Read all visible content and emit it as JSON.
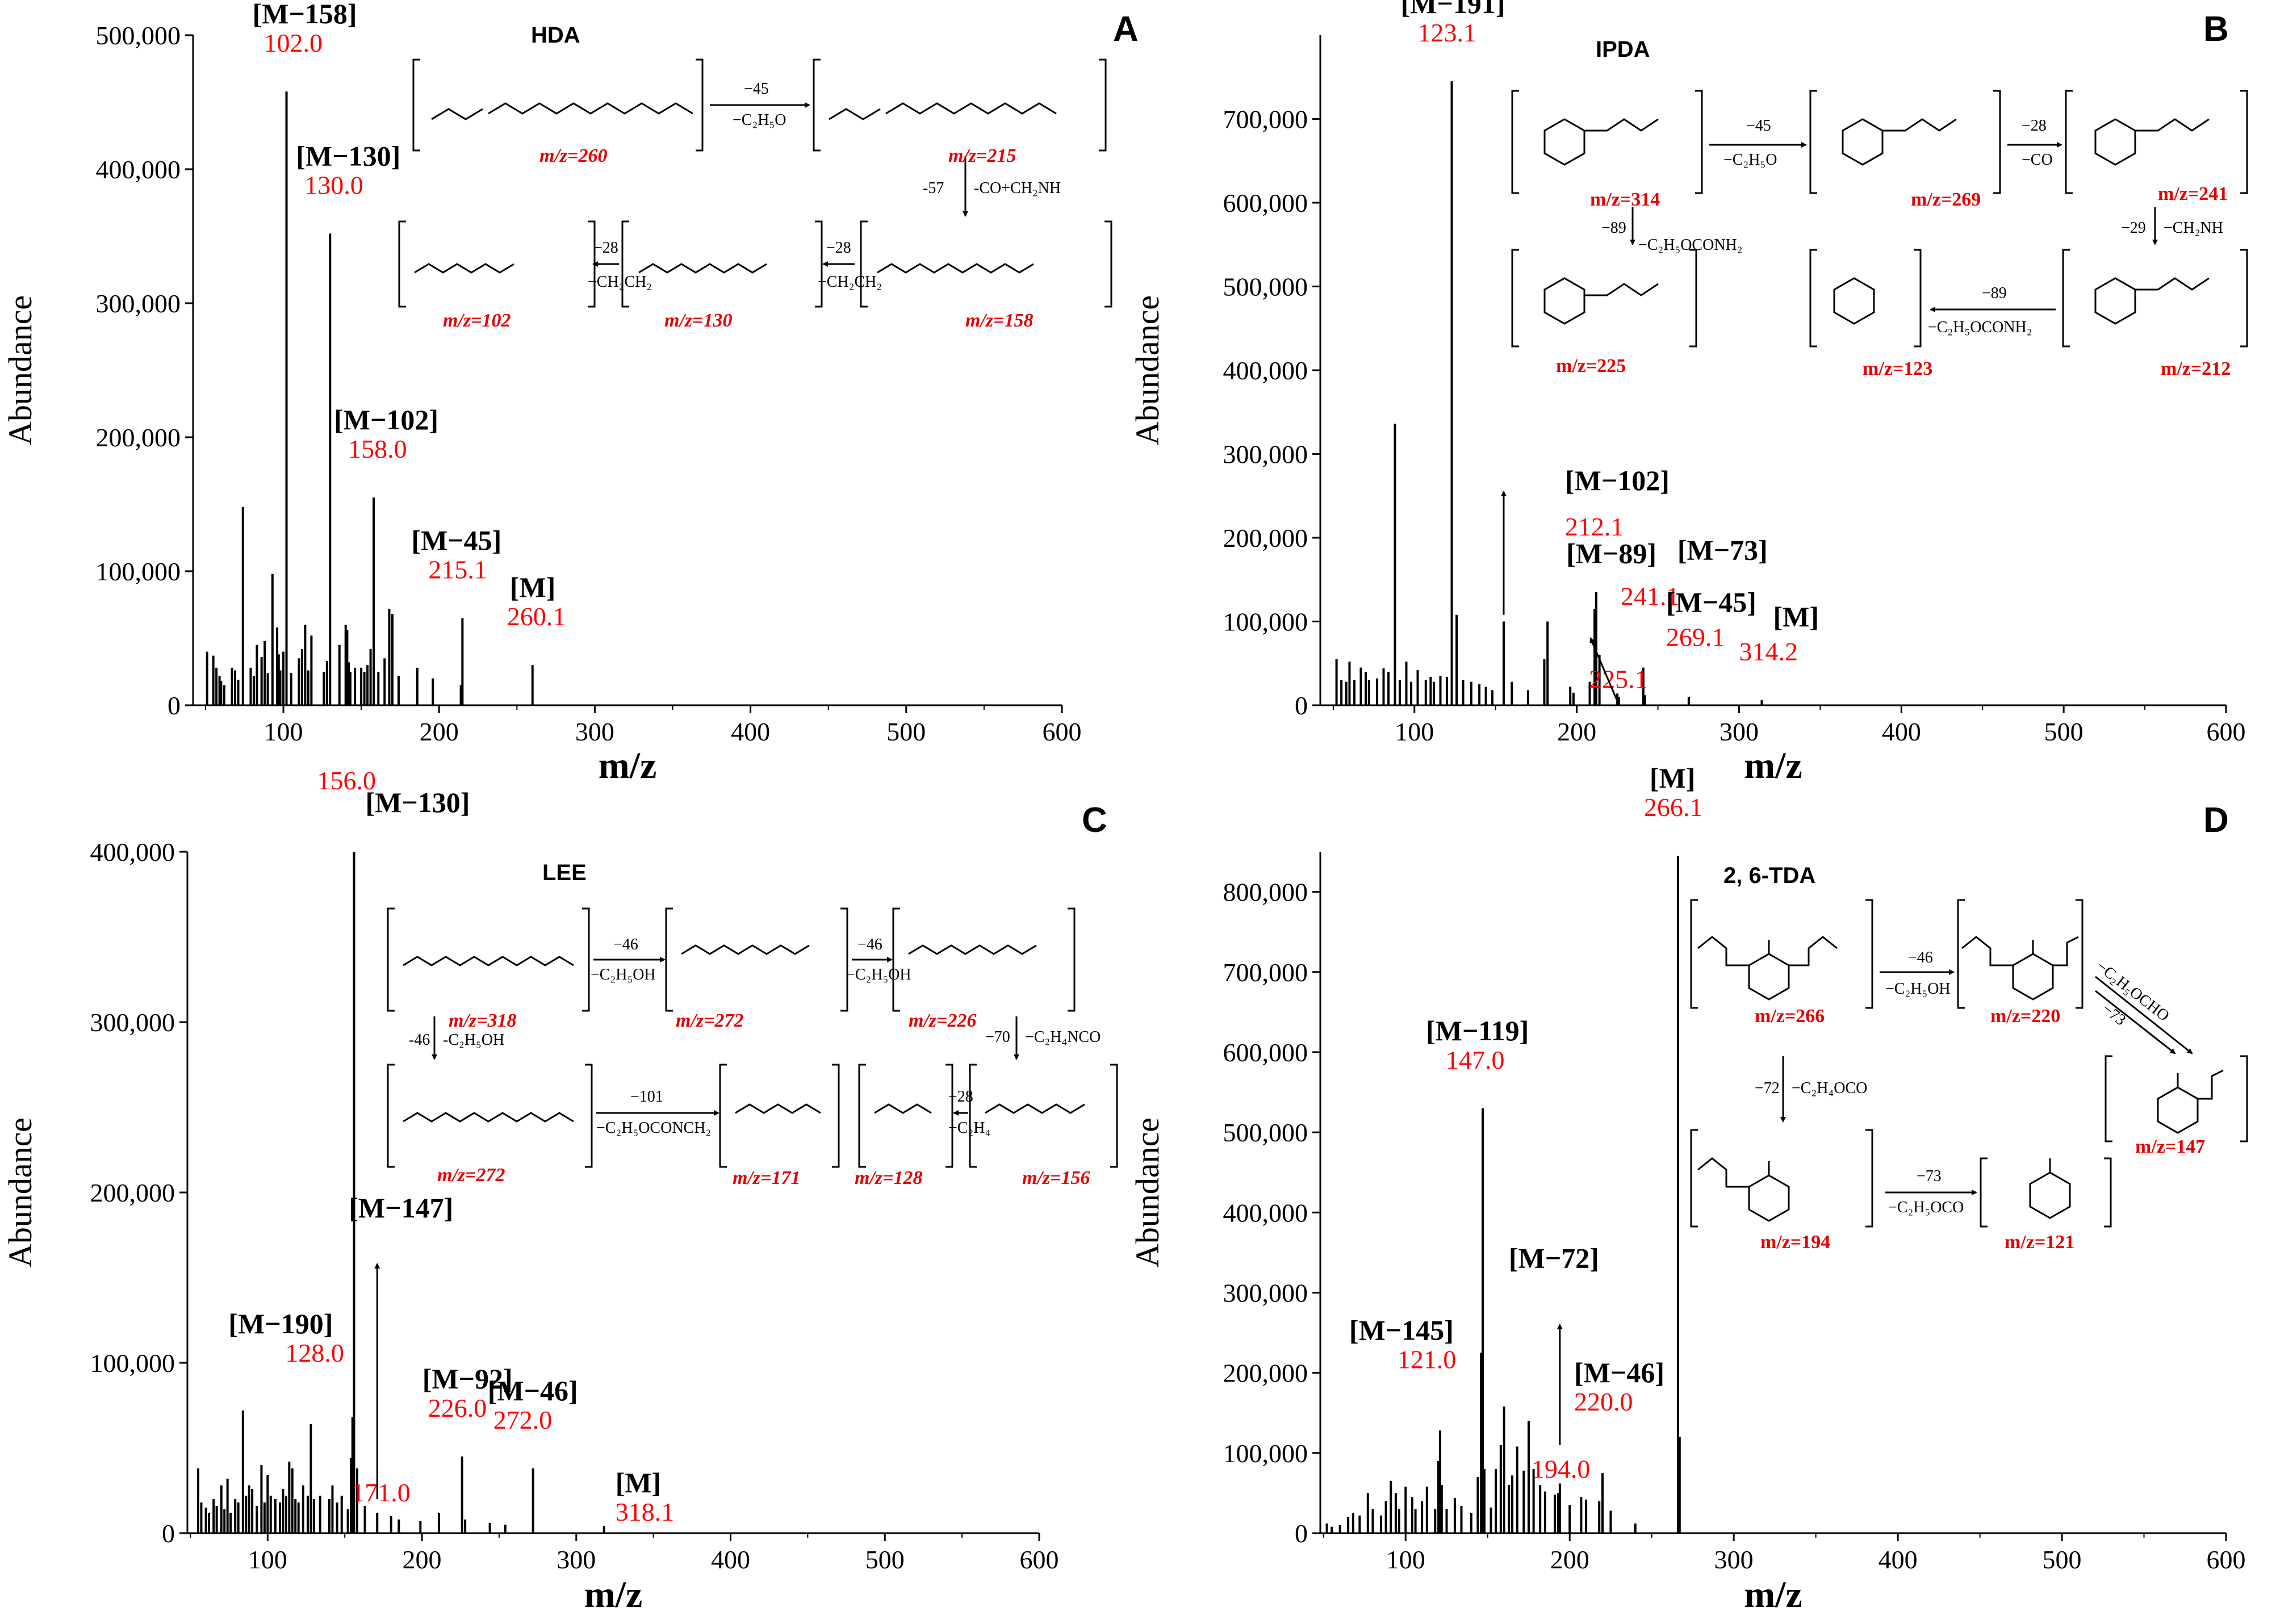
{
  "figure": {
    "description": "Mass spectra of four carbamates",
    "axis_x_label": "m/z",
    "axis_y_label": "Abundance"
  },
  "colors": {
    "axis": "#000000",
    "peaks": "#000000",
    "mass_label": "#ff0000",
    "fragment_label": "#000000",
    "scheme_red": "#e60000"
  },
  "chart_data": [
    {
      "type": "bar",
      "panel": "A",
      "compound": "HDA",
      "xlabel": "m/z",
      "ylabel": "Abundance",
      "xlim": [
        42,
        600
      ],
      "ylim": [
        0,
        500000
      ],
      "xticks": [
        100,
        200,
        300,
        400,
        500,
        600
      ],
      "yticks": [
        0,
        100000,
        200000,
        300000,
        400000,
        500000
      ],
      "ytick_labels": [
        "0",
        "100,000",
        "200,000",
        "300,000",
        "400,000",
        "500,000"
      ],
      "peaks": {
        "x": [
          51,
          55,
          57,
          59,
          60,
          62,
          67,
          69,
          71,
          74,
          79,
          81,
          83,
          86,
          88,
          90,
          93,
          96,
          97,
          98,
          100,
          102,
          105,
          110,
          112,
          114,
          116,
          118,
          126,
          128,
          130,
          136,
          140,
          141,
          142,
          143,
          146,
          150,
          152,
          154,
          156,
          158,
          161,
          165,
          168,
          170,
          174,
          186,
          196,
          214,
          215,
          260
        ],
        "y": [
          40000,
          37000,
          28000,
          22000,
          18000,
          15000,
          28000,
          26000,
          19000,
          148000,
          28000,
          22000,
          45000,
          36000,
          48000,
          24000,
          98000,
          58000,
          38000,
          26000,
          40000,
          458000,
          24000,
          35000,
          42000,
          60000,
          26000,
          52000,
          25000,
          33000,
          352000,
          45000,
          60000,
          56000,
          32000,
          25000,
          28000,
          28000,
          25000,
          30000,
          42000,
          155000,
          25000,
          35000,
          72000,
          68000,
          22000,
          28000,
          20000,
          15000,
          65000,
          30000
        ]
      },
      "annotations": [
        {
          "label": "[M−158]",
          "mass": "102.0",
          "x": 102
        },
        {
          "label": "[M−130]",
          "mass": "130.0",
          "x": 130
        },
        {
          "label": "[M−102]",
          "mass": "158.0",
          "x": 158
        },
        {
          "label": "[M−45]",
          "mass": "215.1",
          "x": 215
        },
        {
          "label": "[M]",
          "mass": "260.1",
          "x": 260
        }
      ],
      "scheme": {
        "texts": [
          "m/z=260",
          "m/z=215",
          "m/z=158",
          "m/z=130",
          "m/z=102"
        ],
        "arrow_labels": [
          "−45",
          "−C₂H₅O",
          "-57",
          "-CO+CH₂NH",
          "−28",
          "−CH₂CH₂",
          "−28",
          "−CH₂CH₂"
        ]
      }
    },
    {
      "type": "bar",
      "panel": "B",
      "compound": "IPDA",
      "xlabel": "m/z",
      "ylabel": "Abundance",
      "xlim": [
        42,
        600
      ],
      "ylim": [
        0,
        800000
      ],
      "xticks": [
        100,
        200,
        300,
        400,
        500,
        600
      ],
      "yticks": [
        0,
        100000,
        200000,
        300000,
        400000,
        500000,
        600000,
        700000
      ],
      "ytick_labels": [
        "0",
        "100,000",
        "200,000",
        "300,000",
        "400,000",
        "500,000",
        "600,000",
        "700,000"
      ],
      "peaks": {
        "x": [
          52,
          55,
          58,
          60,
          63,
          67,
          70,
          72,
          77,
          81,
          84,
          88,
          91,
          95,
          98,
          102,
          107,
          110,
          112,
          116,
          120,
          123,
          126,
          130,
          135,
          140,
          144,
          148,
          155,
          160,
          170,
          180,
          182,
          196,
          198,
          208,
          211,
          212,
          214,
          225,
          226,
          241,
          242,
          269,
          314
        ],
        "y": [
          55000,
          30000,
          28000,
          52000,
          30000,
          45000,
          40000,
          30000,
          32000,
          44000,
          40000,
          336000,
          30000,
          52000,
          28000,
          42000,
          30000,
          34000,
          28000,
          35000,
          34000,
          745000,
          108000,
          30000,
          28000,
          25000,
          22000,
          18000,
          100000,
          28000,
          18000,
          55000,
          100000,
          22000,
          15000,
          28000,
          115000,
          135000,
          60000,
          14000,
          10000,
          45000,
          12000,
          10000,
          6000
        ]
      },
      "annotations": [
        {
          "label": "[M−191]",
          "mass": "123.1",
          "x": 123
        },
        {
          "label": "[M−89]",
          "mass": "225.1",
          "x": 225
        },
        {
          "label": "[M−102]",
          "mass": "212.1",
          "x": 212
        },
        {
          "label": "[M−73]",
          "mass": "241.1",
          "x": 241
        },
        {
          "label": "[M−45]",
          "mass": "269.1",
          "x": 269
        },
        {
          "label": "[M]",
          "mass": "314.2",
          "x": 314
        }
      ],
      "scheme": {
        "texts": [
          "m/z=314",
          "m/z=269",
          "m/z=241",
          "m/z=225",
          "m/z=212",
          "m/z=123"
        ],
        "arrow_labels": [
          "−45",
          "−C₂H₅O",
          "−28",
          "−CO",
          "−89",
          "−C₂H₅OCONH₂",
          "−29",
          "−CH₂NH",
          "−89",
          "−C₂H₅OCONH₂"
        ]
      }
    },
    {
      "type": "bar",
      "panel": "C",
      "compound": "LEE",
      "xlabel": "m/z",
      "ylabel": "Abundance",
      "xlim": [
        48,
        600
      ],
      "ylim": [
        0,
        400000
      ],
      "xticks": [
        100,
        200,
        300,
        400,
        500,
        600
      ],
      "yticks": [
        0,
        100000,
        200000,
        300000,
        400000
      ],
      "ytick_labels": [
        "0",
        "100,000",
        "200,000",
        "300,000",
        "400,000"
      ],
      "peaks": {
        "x": [
          55,
          57,
          60,
          62,
          65,
          67,
          70,
          72,
          74,
          76,
          79,
          81,
          84,
          86,
          88,
          90,
          93,
          96,
          98,
          100,
          102,
          105,
          108,
          110,
          112,
          114,
          116,
          118,
          120,
          123,
          126,
          128,
          130,
          134,
          140,
          142,
          145,
          148,
          152,
          154,
          155,
          156,
          158,
          163,
          171,
          180,
          185,
          199,
          211,
          226,
          228,
          244,
          254,
          272,
          318
        ],
        "y": [
          38000,
          18000,
          15000,
          12000,
          20000,
          16000,
          28000,
          14000,
          32000,
          12000,
          20000,
          18000,
          72000,
          22000,
          28000,
          26000,
          16000,
          40000,
          18000,
          34000,
          22000,
          20000,
          18000,
          26000,
          22000,
          42000,
          38000,
          20000,
          18000,
          28000,
          22000,
          64000,
          20000,
          22000,
          20000,
          28000,
          18000,
          22000,
          14000,
          44000,
          68000,
          400000,
          38000,
          16000,
          12000,
          10000,
          8000,
          7000,
          12000,
          45000,
          8000,
          6000,
          5000,
          38000,
          4000
        ]
      },
      "annotations": [
        {
          "label": "[M−130]",
          "mass": "156.0",
          "x": 156
        },
        {
          "label": "[M−147]",
          "mass": "171.0",
          "x": 171
        },
        {
          "label": "[M−190]",
          "mass": "128.0",
          "x": 128
        },
        {
          "label": "[M−92]",
          "mass": "226.0",
          "x": 226
        },
        {
          "label": "[M−46]",
          "mass": "272.0",
          "x": 272
        },
        {
          "label": "[M]",
          "mass": "318.1",
          "x": 318
        }
      ],
      "scheme": {
        "texts": [
          "m/z=318",
          "m/z=272",
          "m/z=226",
          "m/z=272",
          "m/z=171",
          "m/z=128",
          "m/z=156"
        ],
        "arrow_labels": [
          "−46",
          "−C₂H₅OH",
          "−46",
          "−C₂H₅OH",
          "−70",
          "−C₂H₄NCO",
          "-46",
          "-C₂H₅OH",
          "−101",
          "−C₂H₅OCONCH₂",
          "−28",
          "−C₂H₄"
        ]
      }
    },
    {
      "type": "bar",
      "panel": "D",
      "compound": "2, 6-TDA",
      "xlabel": "m/z",
      "ylabel": "Abundance",
      "xlim": [
        48,
        600
      ],
      "ylim": [
        0,
        850000
      ],
      "xticks": [
        100,
        200,
        300,
        400,
        500,
        600
      ],
      "yticks": [
        0,
        100000,
        200000,
        300000,
        400000,
        500000,
        600000,
        700000,
        800000
      ],
      "ytick_labels": [
        "0",
        "100,000",
        "200,000",
        "300,000",
        "400,000",
        "500,000",
        "600,000",
        "700,000",
        "800,000"
      ],
      "peaks": {
        "x": [
          52,
          55,
          60,
          65,
          68,
          72,
          77,
          80,
          85,
          88,
          91,
          94,
          96,
          100,
          104,
          106,
          110,
          113,
          118,
          120,
          121,
          122,
          125,
          130,
          134,
          140,
          144,
          146,
          147,
          148,
          152,
          155,
          158,
          160,
          163,
          165,
          168,
          172,
          175,
          178,
          182,
          185,
          191,
          193,
          194,
          200,
          207,
          210,
          218,
          220,
          225,
          240,
          266,
          267
        ],
        "y": [
          12000,
          8000,
          10000,
          20000,
          25000,
          22000,
          50000,
          30000,
          22000,
          40000,
          65000,
          50000,
          30000,
          58000,
          45000,
          30000,
          40000,
          58000,
          30000,
          90000,
          128000,
          60000,
          30000,
          44000,
          34000,
          25000,
          70000,
          225000,
          530000,
          80000,
          32000,
          80000,
          110000,
          158000,
          60000,
          72000,
          108000,
          78000,
          140000,
          80000,
          60000,
          52000,
          48000,
          50000,
          62000,
          35000,
          45000,
          42000,
          40000,
          75000,
          28000,
          12000,
          845000,
          120000
        ]
      },
      "annotations": [
        {
          "label": "[M]",
          "mass": "266.1",
          "x": 266
        },
        {
          "label": "[M−119]",
          "mass": "147.0",
          "x": 147
        },
        {
          "label": "[M−145]",
          "mass": "121.0",
          "x": 121
        },
        {
          "label": "[M−72]",
          "mass": "194.0",
          "x": 194
        },
        {
          "label": "[M−46]",
          "mass": "220.0",
          "x": 220
        }
      ],
      "scheme": {
        "texts": [
          "m/z=266",
          "m/z=220",
          "m/z=147",
          "m/z=194",
          "m/z=121"
        ],
        "arrow_labels": [
          "−46",
          "−C₂H₅OH",
          "−C₂H₅OCHO",
          "−73",
          "−72",
          "−C₂H₄OCO",
          "−73",
          "−C₂H₅OCO"
        ]
      }
    }
  ]
}
